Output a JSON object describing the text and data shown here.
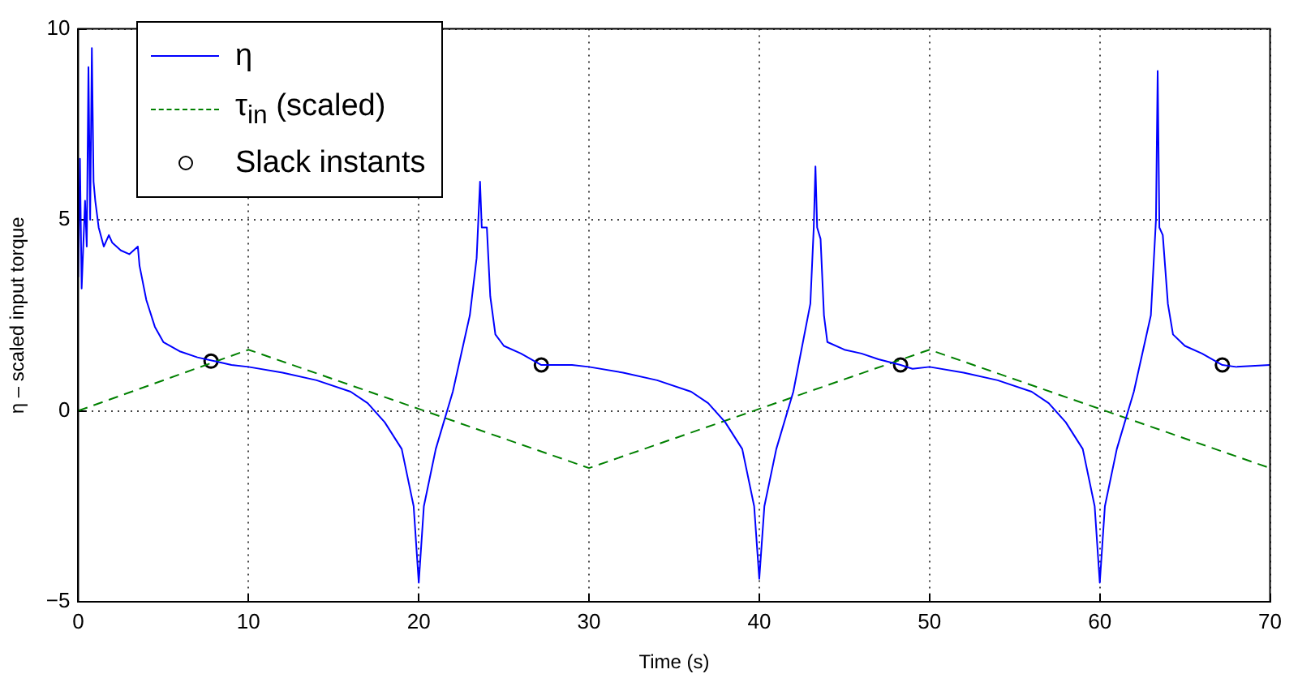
{
  "chart_data": {
    "type": "line",
    "xlabel": "Time (s)",
    "ylabel": "η – scaled input torque",
    "xlim": [
      0,
      70
    ],
    "xticks": [
      0,
      10,
      20,
      30,
      40,
      50,
      60,
      70
    ],
    "ylim": [
      -5,
      10
    ],
    "yticks": [
      -5,
      0,
      5,
      10
    ],
    "grid": true,
    "legend": "top left",
    "series": [
      {
        "name": "η",
        "color": "#0000ff",
        "line_style": "solid",
        "marker": "none",
        "x": [
          0,
          0.1,
          0.2,
          0.4,
          0.5,
          0.6,
          0.7,
          0.8,
          0.9,
          1.0,
          1.2,
          1.5,
          1.8,
          2.0,
          2.5,
          3.0,
          3.5,
          3.6,
          4.0,
          4.5,
          5.0,
          6.0,
          7.0,
          8.0,
          9,
          10,
          12,
          14,
          16,
          17,
          18,
          19,
          19.7,
          20,
          20.3,
          21,
          22,
          23,
          23.4,
          23.6,
          23.7,
          24,
          24.2,
          24.5,
          25,
          26,
          27.2,
          28,
          29,
          30,
          32,
          34,
          36,
          37,
          38,
          39,
          39.7,
          40,
          40.3,
          41,
          42,
          43,
          43.2,
          43.3,
          43.4,
          43.6,
          43.8,
          44,
          45,
          46,
          47,
          48.3,
          49,
          50,
          52,
          54,
          56,
          57,
          58,
          59,
          59.7,
          60,
          60.3,
          61,
          62,
          63,
          63.3,
          63.4,
          63.5,
          63.7,
          64,
          64.3,
          65,
          66,
          67.2,
          68,
          70
        ],
        "values": [
          3.5,
          6.6,
          3.2,
          5.5,
          4.3,
          9.0,
          5.0,
          9.5,
          6.0,
          5.5,
          4.8,
          4.3,
          4.6,
          4.4,
          4.2,
          4.1,
          4.3,
          3.8,
          2.9,
          2.2,
          1.8,
          1.55,
          1.4,
          1.3,
          1.2,
          1.15,
          1.0,
          0.8,
          0.5,
          0.2,
          -0.3,
          -1.0,
          -2.5,
          -4.5,
          -2.5,
          -1.0,
          0.5,
          2.5,
          4.0,
          6.0,
          4.8,
          4.8,
          3.0,
          2.0,
          1.7,
          1.5,
          1.2,
          1.2,
          1.2,
          1.15,
          1.0,
          0.8,
          0.5,
          0.2,
          -0.3,
          -1.0,
          -2.5,
          -4.4,
          -2.5,
          -1.0,
          0.5,
          2.8,
          4.8,
          6.4,
          4.8,
          4.5,
          2.5,
          1.8,
          1.6,
          1.5,
          1.35,
          1.2,
          1.1,
          1.15,
          1.0,
          0.8,
          0.5,
          0.2,
          -0.3,
          -1.0,
          -2.5,
          -4.5,
          -2.5,
          -1.0,
          0.5,
          2.5,
          5.0,
          8.9,
          4.8,
          4.6,
          2.8,
          2.0,
          1.7,
          1.5,
          1.2,
          1.15,
          1.2
        ]
      },
      {
        "name": "τ$_{in}$ (scaled)",
        "color": "#008000",
        "line_style": "dashed",
        "marker": "none",
        "x": [
          0,
          10,
          30,
          50,
          70
        ],
        "values": [
          0,
          1.6,
          -1.5,
          1.6,
          -1.5
        ]
      },
      {
        "name": "Slack instants",
        "type": "scatter",
        "color": "#000000",
        "marker": "circle",
        "x": [
          7.8,
          27.2,
          48.3,
          67.2
        ],
        "values": [
          1.3,
          1.2,
          1.2,
          1.2
        ]
      }
    ]
  }
}
